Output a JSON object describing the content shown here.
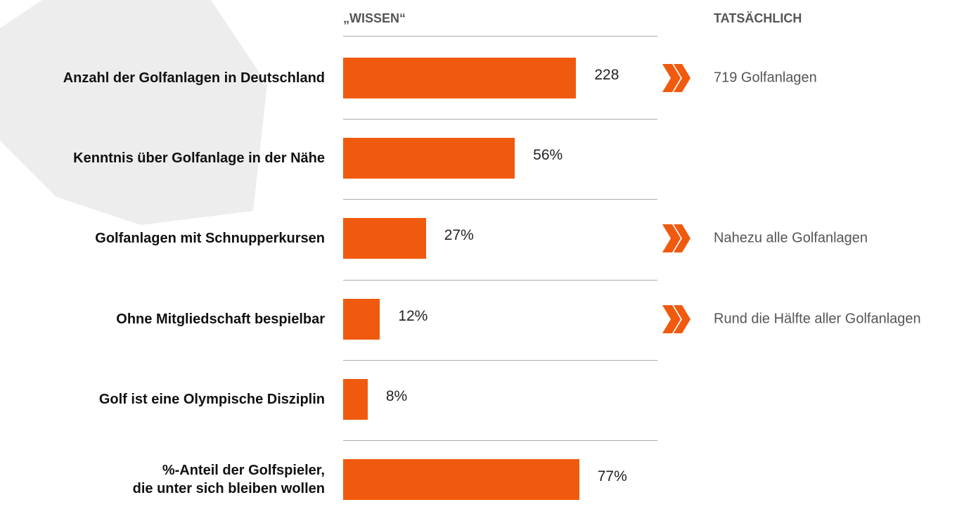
{
  "header": {
    "left": "„WISSEN“",
    "right": "TATSÄCHLICH"
  },
  "chart_data": [
    {
      "type": "bar",
      "orientation": "horizontal",
      "categories": [
        "Anzahl der Golfanlagen in Deutschland"
      ],
      "values": [
        228
      ],
      "color": "#f05a0f",
      "xlim": [
        0,
        300
      ]
    },
    {
      "type": "bar",
      "orientation": "horizontal",
      "categories": [
        "Kenntnis über Golfanlage in der Nähe",
        "Golfanlagen mit Schnupperkursen",
        "Ohne Mitgliedschaft bespielbar",
        "Golf ist eine Olympische Disziplin",
        "%-Anteil der Golfspieler,\ndie unter sich bleiben wollen"
      ],
      "values": [
        56,
        27,
        12,
        8,
        77
      ],
      "value_labels": [
        "56%",
        "27%",
        "12%",
        "8%",
        "77%"
      ],
      "color": "#f05a0f",
      "xlim": [
        0,
        100
      ]
    }
  ],
  "actual": {
    "items": [
      "719 Golfanlagen",
      null,
      "Nahezu alle Golfanlagen",
      "Rund die Hälfte aller Golfanlagen",
      null,
      null
    ]
  }
}
